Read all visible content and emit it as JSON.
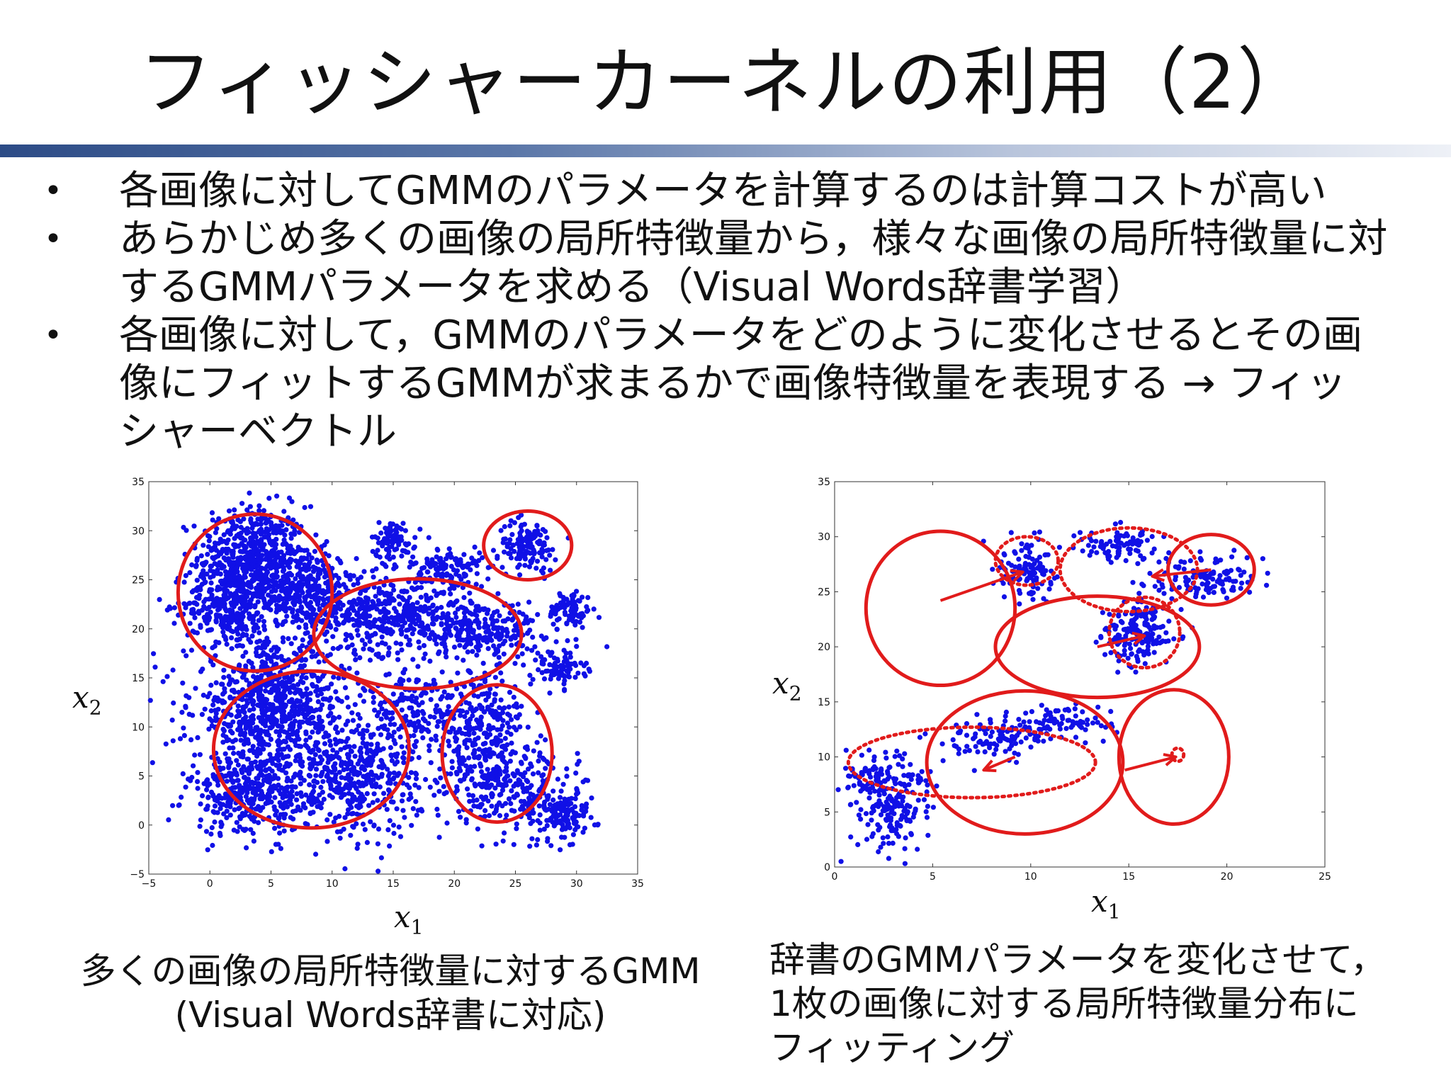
{
  "title": "フィッシャーカーネルの利用（2）",
  "bullets": [
    {
      "lines": [
        "各画像に対してGMMのパラメータを計算するのは計算コストが高い"
      ]
    },
    {
      "lines": [
        "あらかじめ多くの画像の局所特徴量から，様々な画像の局所特徴量に対",
        "するGMMパラメータを求める（Visual Words辞書学習）"
      ]
    },
    {
      "lines": [
        "各画像に対して，GMMのパラメータをどのように変化させるとその画",
        "像にフィットするGMMが求まるかで画像特徴量を表現する → フィッ",
        "シャーベクトル"
      ]
    }
  ],
  "bullet_symbol": "•",
  "axis_symbols": {
    "x_var": "x",
    "x_sub": "1",
    "y_var": "x",
    "y_sub": "2"
  },
  "captions": {
    "left": [
      "多くの画像の局所特徴量に対するGMM",
      "(Visual Words辞書に対応)"
    ],
    "right": [
      "辞書のGMMパラメータを変化させて，",
      "1枚の画像に対する局所特徴量分布に",
      "フィッティング"
    ]
  },
  "colors": {
    "points": "#1010e6",
    "ellipses": "#e11b1b",
    "title_bar": "#2c4b86"
  },
  "chart_data": [
    {
      "type": "scatter",
      "title": "",
      "xlim": [
        -5,
        35
      ],
      "ylim": [
        -5,
        35
      ],
      "xticks": [
        "−5",
        "0",
        "5",
        "10",
        "15",
        "20",
        "25",
        "30",
        "35"
      ],
      "yticks": [
        "−5",
        "0",
        "5",
        "10",
        "15",
        "20",
        "25",
        "30",
        "35"
      ],
      "xlabel": "x1",
      "ylabel": "x2",
      "clusters": [
        {
          "cx": 3.5,
          "cy": 27.5,
          "sx": 2.2,
          "sy": 2.5,
          "n": 520
        },
        {
          "cx": 7.5,
          "cy": 24.0,
          "sx": 2.2,
          "sy": 2.0,
          "n": 360
        },
        {
          "cx": 1.5,
          "cy": 22.5,
          "sx": 1.8,
          "sy": 2.0,
          "n": 300
        },
        {
          "cx": 14.5,
          "cy": 21.5,
          "sx": 3.2,
          "sy": 2.0,
          "n": 420
        },
        {
          "cx": 22.0,
          "cy": 20.0,
          "sx": 2.5,
          "sy": 1.5,
          "n": 260
        },
        {
          "cx": 19.5,
          "cy": 26.0,
          "sx": 1.4,
          "sy": 1.2,
          "n": 130
        },
        {
          "cx": 15.0,
          "cy": 29.0,
          "sx": 0.9,
          "sy": 1.0,
          "n": 90
        },
        {
          "cx": 26.0,
          "cy": 28.5,
          "sx": 1.2,
          "sy": 1.3,
          "n": 130
        },
        {
          "cx": 29.5,
          "cy": 22.0,
          "sx": 0.9,
          "sy": 1.0,
          "n": 80
        },
        {
          "cx": 28.5,
          "cy": 16.0,
          "sx": 1.1,
          "sy": 1.0,
          "n": 90
        },
        {
          "cx": 5.0,
          "cy": 12.0,
          "sx": 3.2,
          "sy": 3.3,
          "n": 820
        },
        {
          "cx": 12.0,
          "cy": 5.0,
          "sx": 2.6,
          "sy": 3.0,
          "n": 420
        },
        {
          "cx": 3.5,
          "cy": 3.0,
          "sx": 2.6,
          "sy": 2.0,
          "n": 380
        },
        {
          "cx": 22.0,
          "cy": 10.0,
          "sx": 2.0,
          "sy": 3.0,
          "n": 300
        },
        {
          "cx": 24.5,
          "cy": 4.0,
          "sx": 2.6,
          "sy": 2.2,
          "n": 260
        },
        {
          "cx": 29.0,
          "cy": 1.0,
          "sx": 1.3,
          "sy": 1.3,
          "n": 130
        },
        {
          "cx": 16.0,
          "cy": 12.0,
          "sx": 1.5,
          "sy": 2.5,
          "n": 150
        }
      ],
      "ellipses": [
        {
          "cx": 3.7,
          "cy": 23.7,
          "rx": 6.3,
          "ry": 8.0,
          "style": "solid"
        },
        {
          "cx": 17.0,
          "cy": 19.5,
          "rx": 8.5,
          "ry": 5.6,
          "style": "solid"
        },
        {
          "cx": 26.0,
          "cy": 28.5,
          "rx": 3.6,
          "ry": 3.5,
          "style": "solid"
        },
        {
          "cx": 8.3,
          "cy": 7.7,
          "rx": 8.0,
          "ry": 8.0,
          "style": "solid"
        },
        {
          "cx": 23.5,
          "cy": 7.3,
          "rx": 4.5,
          "ry": 7.0,
          "style": "solid"
        }
      ]
    },
    {
      "type": "scatter",
      "title": "",
      "xlim": [
        0,
        25
      ],
      "ylim": [
        0,
        35
      ],
      "xticks": [
        "0",
        "5",
        "10",
        "15",
        "20",
        "25"
      ],
      "yticks": [
        "0",
        "5",
        "10",
        "15",
        "20",
        "25",
        "30",
        "35"
      ],
      "xlabel": "x1",
      "ylabel": "x2",
      "clusters": [
        {
          "cx": 9.8,
          "cy": 27.0,
          "sx": 0.8,
          "sy": 1.5,
          "n": 110
        },
        {
          "cx": 14.8,
          "cy": 29.3,
          "sx": 1.1,
          "sy": 0.8,
          "n": 90
        },
        {
          "cx": 18.8,
          "cy": 26.2,
          "sx": 1.5,
          "sy": 1.0,
          "n": 120
        },
        {
          "cx": 15.5,
          "cy": 21.2,
          "sx": 0.9,
          "sy": 1.6,
          "n": 170
        },
        {
          "cx": 8.2,
          "cy": 11.5,
          "sx": 1.2,
          "sy": 1.0,
          "n": 90
        },
        {
          "cx": 11.2,
          "cy": 13.0,
          "sx": 1.5,
          "sy": 0.8,
          "n": 90
        },
        {
          "cx": 3.0,
          "cy": 5.8,
          "sx": 1.0,
          "sy": 2.2,
          "n": 190
        },
        {
          "cx": 1.5,
          "cy": 8.0,
          "sx": 0.6,
          "sy": 1.0,
          "n": 50
        }
      ],
      "ellipses": [
        {
          "cx": 5.4,
          "cy": 23.5,
          "rx": 3.8,
          "ry": 7.0,
          "style": "solid"
        },
        {
          "cx": 13.4,
          "cy": 20.0,
          "rx": 5.2,
          "ry": 4.6,
          "style": "solid"
        },
        {
          "cx": 19.2,
          "cy": 27.0,
          "rx": 2.2,
          "ry": 3.2,
          "style": "solid"
        },
        {
          "cx": 9.7,
          "cy": 9.5,
          "rx": 5.0,
          "ry": 6.5,
          "style": "solid"
        },
        {
          "cx": 17.3,
          "cy": 10.0,
          "rx": 2.8,
          "ry": 6.1,
          "style": "solid"
        },
        {
          "cx": 9.8,
          "cy": 27.8,
          "rx": 1.6,
          "ry": 2.2,
          "style": "dotted"
        },
        {
          "cx": 15.0,
          "cy": 27.0,
          "rx": 3.5,
          "ry": 3.8,
          "style": "dotted"
        },
        {
          "cx": 15.8,
          "cy": 21.3,
          "rx": 1.8,
          "ry": 3.2,
          "style": "dotted"
        },
        {
          "cx": 7.0,
          "cy": 9.5,
          "rx": 6.3,
          "ry": 3.2,
          "style": "dotted"
        },
        {
          "cx": 17.5,
          "cy": 10.2,
          "rx": 0.3,
          "ry": 0.6,
          "style": "dotted"
        }
      ],
      "arrows": [
        {
          "from": [
            5.4,
            24.2
          ],
          "to": [
            9.6,
            26.8
          ]
        },
        {
          "from": [
            13.4,
            20.0
          ],
          "to": [
            15.8,
            21.0
          ]
        },
        {
          "from": [
            19.2,
            27.0
          ],
          "to": [
            16.2,
            26.4
          ]
        },
        {
          "from": [
            9.2,
            10.0
          ],
          "to": [
            7.6,
            8.8
          ]
        },
        {
          "from": [
            14.8,
            8.8
          ],
          "to": [
            17.4,
            10.0
          ]
        }
      ]
    }
  ]
}
